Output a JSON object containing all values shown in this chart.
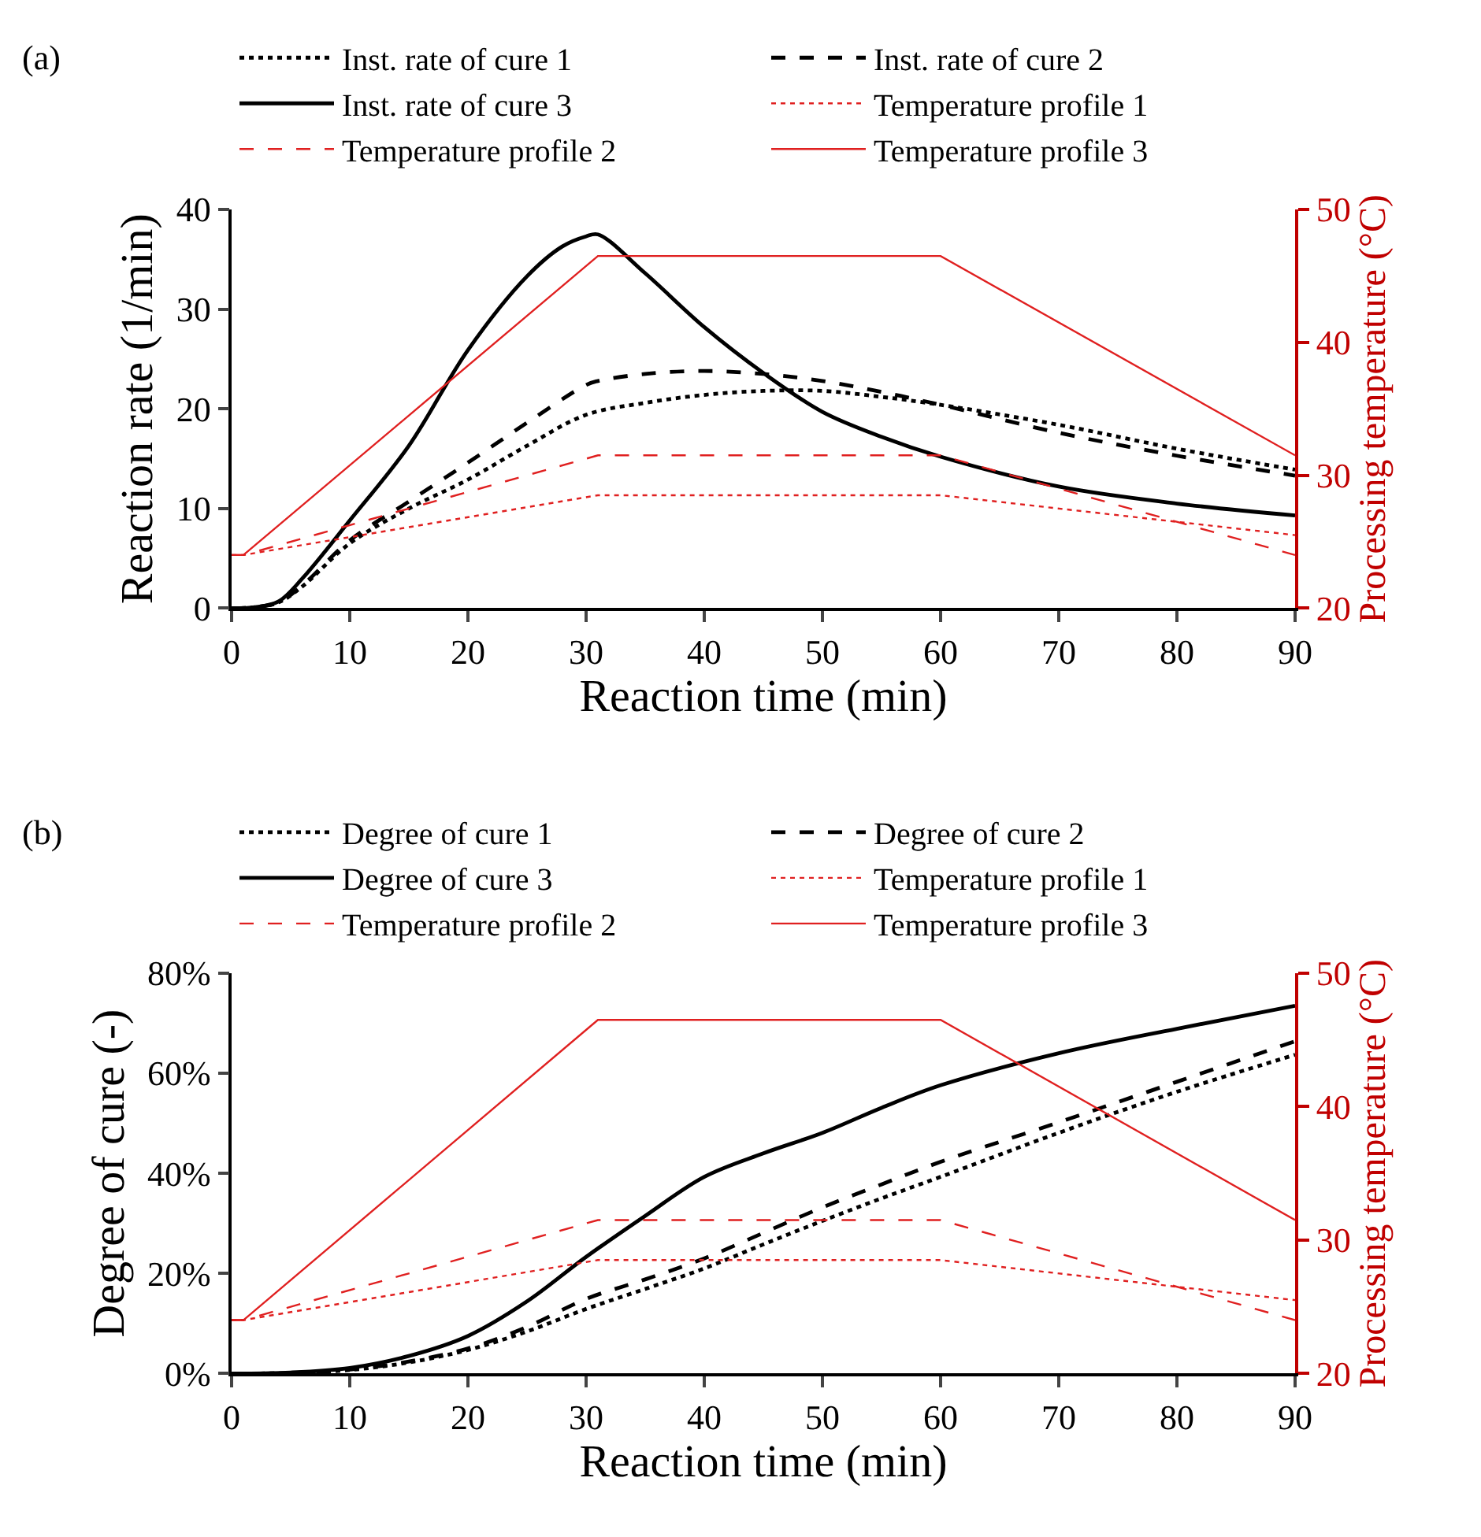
{
  "chart_data": [
    {
      "type": "line",
      "annotations": [
        "(a)"
      ],
      "xlabel": "Reaction time (min)",
      "ylabel": "Reaction rate (1/min)",
      "y2label": "Processing temperature (°C)",
      "xlim": [
        0,
        90
      ],
      "xticks": [
        0,
        10,
        20,
        30,
        40,
        50,
        60,
        70,
        80,
        90
      ],
      "ylim": [
        0,
        40
      ],
      "yticks": [
        0,
        10,
        20,
        30,
        40
      ],
      "y2lim": [
        20,
        50
      ],
      "y2ticks": [
        20,
        30,
        40,
        50
      ],
      "grid": false,
      "legend": "top",
      "marker": "none",
      "series": [
        {
          "name": "Inst. rate of cure 1",
          "color": "#000000",
          "line_style": "dotted",
          "x": [
            0,
            2,
            4,
            6,
            10,
            15,
            20,
            25,
            30,
            35,
            40,
            45,
            50,
            55,
            60,
            70,
            80,
            90
          ],
          "values": [
            0,
            0.1,
            0.6,
            2.2,
            6.5,
            10,
            12.9,
            16.3,
            19.4,
            20.6,
            21.4,
            21.8,
            21.8,
            21.2,
            20.4,
            18.4,
            16,
            13.9
          ]
        },
        {
          "name": "Inst. rate of cure 2",
          "color": "#000000",
          "line_style": "dashed",
          "x": [
            0,
            2,
            4,
            6,
            10,
            15,
            20,
            25,
            30,
            31,
            35,
            40,
            45,
            50,
            55,
            60,
            70,
            80,
            90
          ],
          "values": [
            0,
            0.1,
            0.6,
            2.3,
            6.8,
            10.7,
            14.6,
            18.6,
            22.4,
            22.8,
            23.5,
            23.8,
            23.5,
            22.8,
            21.7,
            20.4,
            17.6,
            15.3,
            13.3
          ]
        },
        {
          "name": "Inst. rate of cure 3",
          "color": "#000000",
          "line_style": "solid",
          "x": [
            0,
            2,
            4,
            6,
            10,
            15,
            20,
            25,
            28,
            30,
            31,
            35,
            40,
            45,
            50,
            55,
            60,
            70,
            80,
            90
          ],
          "values": [
            0,
            0.1,
            0.7,
            3,
            8.8,
            16.3,
            25.9,
            33.3,
            36.3,
            37.3,
            37.5,
            33.6,
            28.2,
            23.6,
            19.7,
            17.2,
            15.2,
            12.2,
            10.5,
            9.3
          ]
        },
        {
          "name": "Temperature profile 1",
          "color": "#e02020",
          "line_style": "dotted",
          "axis": "y2",
          "x": [
            0,
            1,
            31,
            60,
            90
          ],
          "values": [
            24,
            24,
            28.5,
            28.5,
            25.5
          ]
        },
        {
          "name": "Temperature profile 2",
          "color": "#e02020",
          "line_style": "dashed",
          "axis": "y2",
          "x": [
            0,
            1,
            31,
            60,
            90
          ],
          "values": [
            24,
            24,
            31.5,
            31.5,
            24
          ]
        },
        {
          "name": "Temperature profile 3",
          "color": "#e02020",
          "line_style": "solid",
          "axis": "y2",
          "x": [
            0,
            1,
            31,
            60,
            90
          ],
          "values": [
            24,
            24,
            46.5,
            46.5,
            31.5
          ]
        }
      ]
    },
    {
      "type": "line",
      "annotations": [
        "(b)"
      ],
      "xlabel": "Reaction time (min)",
      "ylabel": "Degree of cure (-)",
      "y2label": "Processing temperature (°C)",
      "xlim": [
        0,
        90
      ],
      "xticks": [
        0,
        10,
        20,
        30,
        40,
        50,
        60,
        70,
        80,
        90
      ],
      "ylim": [
        0,
        80
      ],
      "yticks": [
        {
          "value": 0,
          "label": "0%"
        },
        {
          "value": 20,
          "label": "20%"
        },
        {
          "value": 40,
          "label": "40%"
        },
        {
          "value": 60,
          "label": "60%"
        },
        {
          "value": 80,
          "label": "80%"
        }
      ],
      "y2lim": [
        20,
        50
      ],
      "y2ticks": [
        20,
        30,
        40,
        50
      ],
      "grid": false,
      "legend": "top",
      "marker": "none",
      "series": [
        {
          "name": "Degree of cure 1",
          "color": "#000000",
          "line_style": "dotted",
          "x": [
            0,
            5,
            10,
            15,
            20,
            25,
            30,
            35,
            40,
            45,
            50,
            55,
            60,
            70,
            80,
            90
          ],
          "values": [
            0,
            0.1,
            0.7,
            2.2,
            4.7,
            8.4,
            12.9,
            16.9,
            21,
            25.8,
            30.5,
            35,
            39.3,
            48.1,
            56.3,
            63.7
          ]
        },
        {
          "name": "Degree of cure 2",
          "color": "#000000",
          "line_style": "dashed",
          "x": [
            0,
            5,
            10,
            15,
            20,
            25,
            30,
            35,
            40,
            45,
            50,
            55,
            60,
            70,
            80,
            90
          ],
          "values": [
            0,
            0.1,
            0.8,
            2.4,
            5,
            9.3,
            14.9,
            18.8,
            23,
            28.1,
            33.2,
            37.8,
            42.3,
            50.2,
            58.3,
            66.4
          ]
        },
        {
          "name": "Degree of cure 3",
          "color": "#000000",
          "line_style": "solid",
          "x": [
            0,
            5,
            10,
            15,
            20,
            25,
            30,
            35,
            40,
            45,
            50,
            55,
            60,
            70,
            80,
            90
          ],
          "values": [
            0,
            0.2,
            1.1,
            3.5,
            7.5,
            14.4,
            23.3,
            31.5,
            39.3,
            44,
            48.1,
            53.1,
            57.6,
            64,
            68.9,
            73.5
          ]
        },
        {
          "name": "Temperature profile 1",
          "color": "#e02020",
          "line_style": "dotted",
          "axis": "y2",
          "x": [
            0,
            1,
            31,
            60,
            90
          ],
          "values": [
            24,
            24,
            28.5,
            28.5,
            25.5
          ]
        },
        {
          "name": "Temperature profile 2",
          "color": "#e02020",
          "line_style": "dashed",
          "axis": "y2",
          "x": [
            0,
            1,
            31,
            60,
            90
          ],
          "values": [
            24,
            24,
            31.5,
            31.5,
            24
          ]
        },
        {
          "name": "Temperature profile 3",
          "color": "#e02020",
          "line_style": "solid",
          "axis": "y2",
          "x": [
            0,
            1,
            31,
            60,
            90
          ],
          "values": [
            24,
            24,
            46.5,
            46.5,
            31.5
          ]
        }
      ]
    }
  ]
}
